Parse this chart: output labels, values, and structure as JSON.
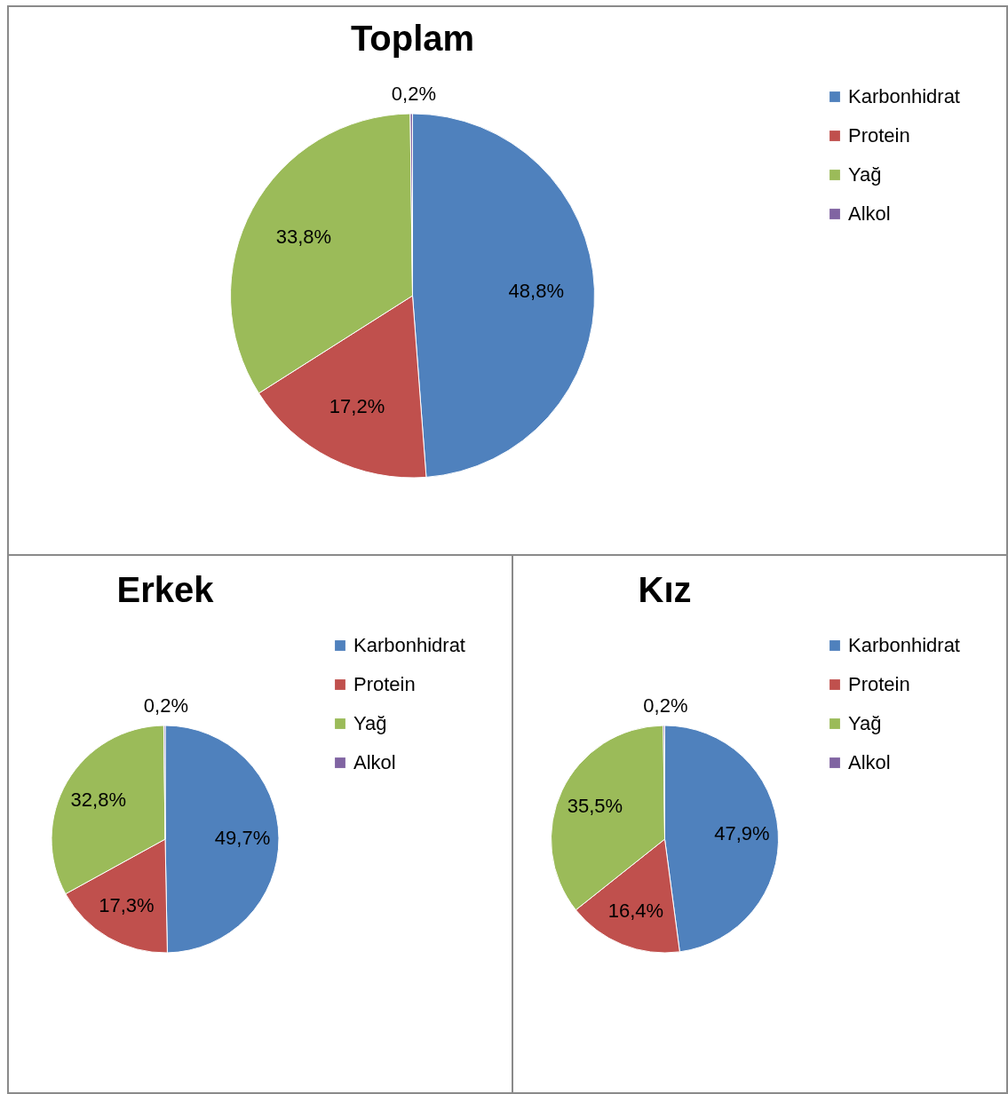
{
  "chart_data": [
    {
      "type": "pie",
      "title": "Toplam",
      "categories": [
        "Karbonhidrat",
        "Protein",
        "Yağ",
        "Alkol"
      ],
      "values": [
        48.8,
        17.2,
        33.8,
        0.2
      ],
      "value_labels": [
        "48,8%",
        "17,2%",
        "33,8%",
        "0,2%"
      ],
      "colors": [
        "#4f81bd",
        "#c0504d",
        "#9bbb59",
        "#8064a2"
      ],
      "legend": "right"
    },
    {
      "type": "pie",
      "title": "Erkek",
      "categories": [
        "Karbonhidrat",
        "Protein",
        "Yağ",
        "Alkol"
      ],
      "values": [
        49.7,
        17.3,
        32.8,
        0.2
      ],
      "value_labels": [
        "49,7%",
        "17,3%",
        "32,8%",
        "0,2%"
      ],
      "colors": [
        "#4f81bd",
        "#c0504d",
        "#9bbb59",
        "#8064a2"
      ],
      "legend": "right"
    },
    {
      "type": "pie",
      "title": "Kız",
      "categories": [
        "Karbonhidrat",
        "Protein",
        "Yağ",
        "Alkol"
      ],
      "values": [
        47.9,
        16.4,
        35.5,
        0.2
      ],
      "value_labels": [
        "47,9%",
        "16,4%",
        "35,5%",
        "0,2%"
      ],
      "colors": [
        "#4f81bd",
        "#c0504d",
        "#9bbb59",
        "#8064a2"
      ],
      "legend": "right"
    }
  ]
}
